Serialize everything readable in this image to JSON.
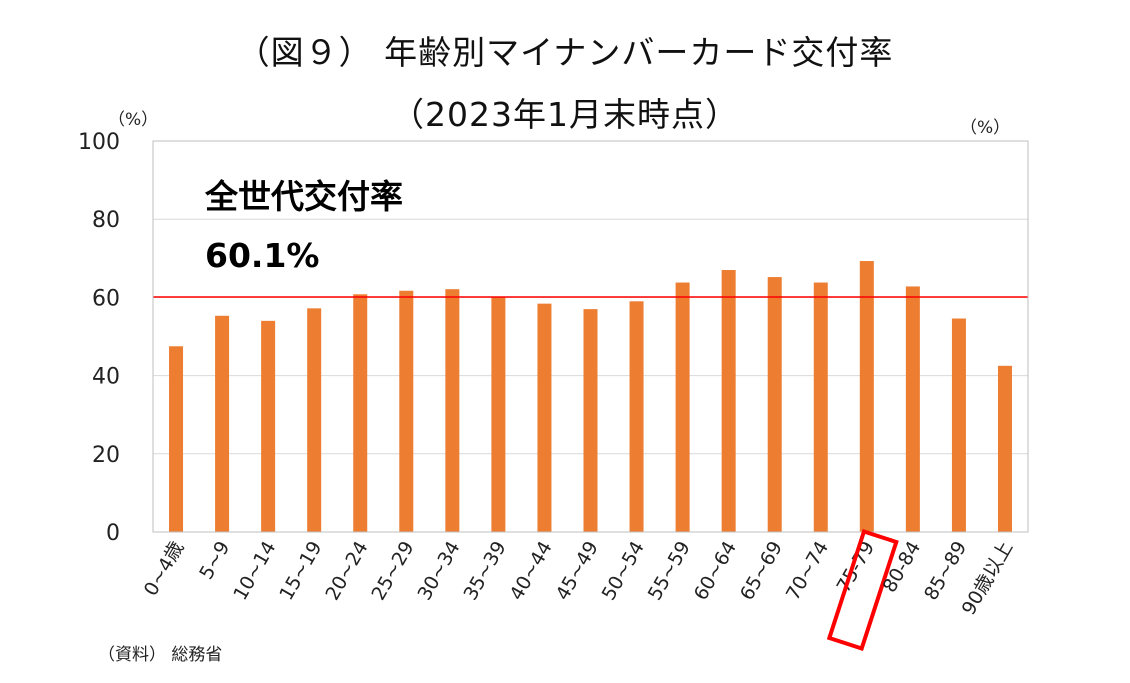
{
  "title": "（図９） 年齢別マイナンバーカード交付率",
  "subtitle": "（2023年1月末時点）",
  "unit_left": "（%）",
  "unit_right": "（%）",
  "source": "（資料） 総務省",
  "overall": {
    "label": "全世代交付率",
    "value": "60.1%"
  },
  "colors": {
    "bar": "#ED7D31",
    "reference_line": "#FF0000",
    "highlight_box": "#FF0000",
    "grid": "#D9D9D9"
  },
  "chart_data": {
    "type": "bar",
    "categories": [
      "0~4歳",
      "5~9",
      "10~14",
      "15~19",
      "20~24",
      "25~29",
      "30~34",
      "35~39",
      "40~44",
      "45~49",
      "50~54",
      "55~59",
      "60~64",
      "65~69",
      "70~74",
      "75-79",
      "80-84",
      "85~89",
      "90歳以上"
    ],
    "values": [
      47.5,
      55.3,
      54.0,
      57.2,
      60.8,
      61.7,
      62.1,
      60.0,
      58.4,
      57.0,
      59.0,
      63.8,
      67.0,
      65.2,
      63.8,
      69.3,
      62.8,
      54.6,
      42.5
    ],
    "ylim": [
      0,
      100
    ],
    "yticks": [
      0,
      20,
      40,
      60,
      80,
      100
    ],
    "reference_line": 60.1,
    "highlighted_category": "75-79",
    "grid": true
  }
}
